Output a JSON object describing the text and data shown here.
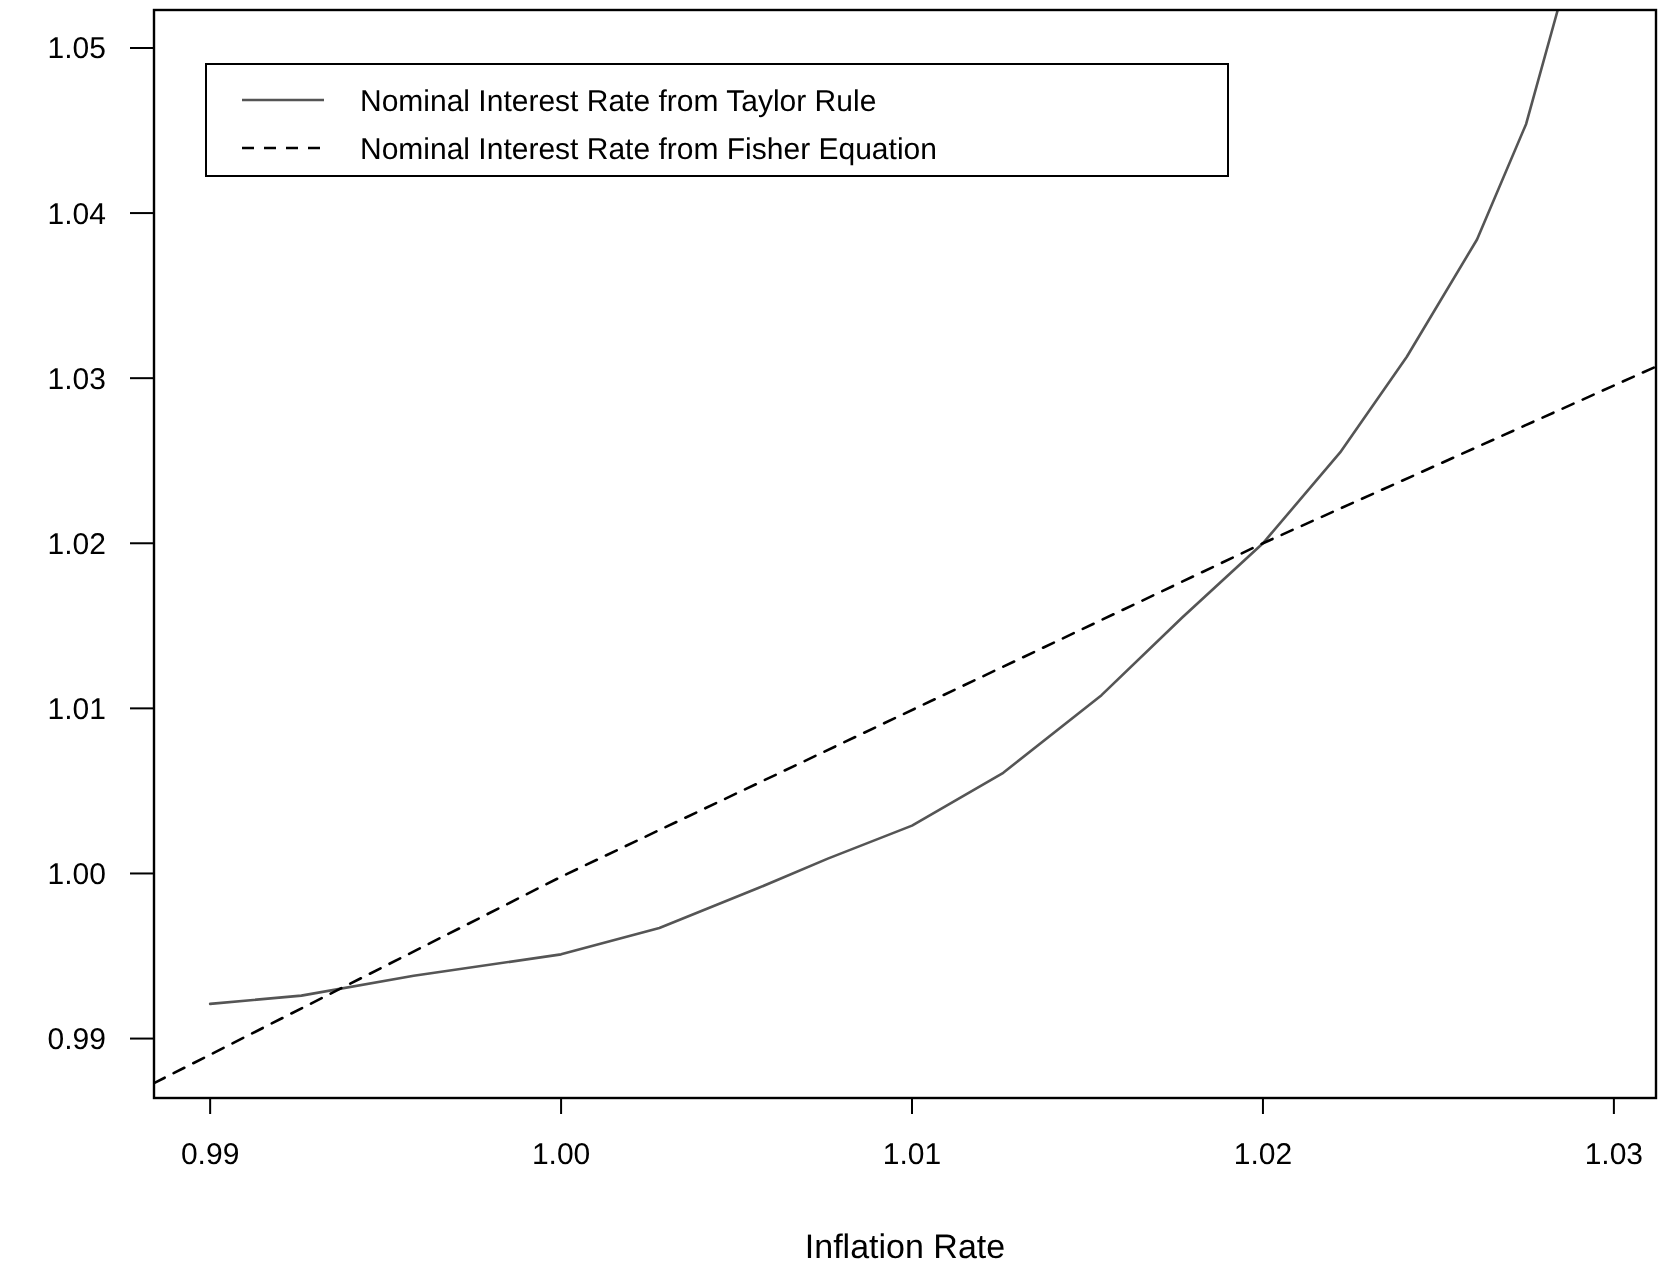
{
  "chart_data": {
    "type": "line",
    "xlabel": "Inflation Rate",
    "xlim": [
      0.9884,
      1.0312
    ],
    "xticks": [
      {
        "value": 0.99,
        "label": "0.99"
      },
      {
        "value": 1.0,
        "label": "1.00"
      },
      {
        "value": 1.01,
        "label": "1.01"
      },
      {
        "value": 1.02,
        "label": "1.02"
      },
      {
        "value": 1.03,
        "label": "1.03"
      }
    ],
    "ylim": [
      0.9864,
      1.0523
    ],
    "yticks": [
      {
        "value": 0.99,
        "label": "0.99"
      },
      {
        "value": 1.0,
        "label": "1.00"
      },
      {
        "value": 1.01,
        "label": "1.01"
      },
      {
        "value": 1.02,
        "label": "1.02"
      },
      {
        "value": 1.03,
        "label": "1.03"
      },
      {
        "value": 1.04,
        "label": "1.04"
      },
      {
        "value": 1.05,
        "label": "1.05"
      }
    ],
    "grid": false,
    "legend": "top left",
    "marker": "none",
    "series": [
      {
        "name": "Nominal Interest Rate from Taylor Rule",
        "color": "#555555",
        "line_style": "solid",
        "x": [
          0.99,
          0.9926,
          0.9958,
          1.0,
          1.0028,
          1.0056,
          1.0076,
          1.01,
          1.0126,
          1.0154,
          1.0177,
          1.02,
          1.0222,
          1.0241,
          1.0261,
          1.0275,
          1.0284
        ],
        "values": [
          0.9921,
          0.9926,
          0.9938,
          0.9951,
          0.9967,
          0.9991,
          1.0009,
          1.0029,
          1.0061,
          1.0108,
          1.0155,
          1.02,
          1.0255,
          1.0313,
          1.0384,
          1.0454,
          1.0523
        ]
      },
      {
        "name": "Nominal Interest Rate from Fisher Equation",
        "color": "#000000",
        "line_style": "dashed",
        "x": [
          0.9884,
          1.0,
          1.02,
          1.0312
        ],
        "values": [
          0.9873,
          0.9998,
          1.02,
          1.0307
        ]
      }
    ]
  }
}
